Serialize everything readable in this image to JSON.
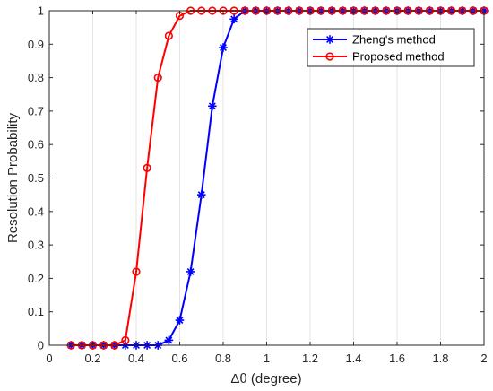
{
  "chart_data": {
    "type": "line",
    "xlabel": "Δθ (degree)",
    "ylabel": "Resolution Probability",
    "xlim": [
      0,
      2
    ],
    "ylim": [
      0,
      1
    ],
    "xticks": [
      "0",
      "0.2",
      "0.4",
      "0.6",
      "0.8",
      "1",
      "1.2",
      "1.4",
      "1.6",
      "1.8",
      "2"
    ],
    "yticks": [
      "0",
      "0.1",
      "0.2",
      "0.3",
      "0.4",
      "0.5",
      "0.6",
      "0.7",
      "0.8",
      "0.9",
      "1"
    ],
    "grid": "vertical",
    "legend_position": "top-right",
    "x": [
      0.1,
      0.15,
      0.2,
      0.25,
      0.3,
      0.35,
      0.4,
      0.45,
      0.5,
      0.55,
      0.6,
      0.65,
      0.7,
      0.75,
      0.8,
      0.85,
      0.9,
      0.95,
      1.0,
      1.05,
      1.1,
      1.15,
      1.2,
      1.25,
      1.3,
      1.35,
      1.4,
      1.45,
      1.5,
      1.55,
      1.6,
      1.65,
      1.7,
      1.75,
      1.8,
      1.85,
      1.9,
      1.95,
      2.0
    ],
    "series": [
      {
        "name": "Zheng's method",
        "color": "#0000ff",
        "marker": "asterisk",
        "values": [
          0,
          0,
          0,
          0,
          0,
          0,
          0,
          0,
          0,
          0.015,
          0.075,
          0.22,
          0.45,
          0.715,
          0.89,
          0.975,
          1,
          1,
          1,
          1,
          1,
          1,
          1,
          1,
          1,
          1,
          1,
          1,
          1,
          1,
          1,
          1,
          1,
          1,
          1,
          1,
          1,
          1,
          1
        ]
      },
      {
        "name": "Proposed method",
        "color": "#ff0000",
        "marker": "circle",
        "values": [
          0,
          0,
          0,
          0,
          0,
          0.015,
          0.22,
          0.53,
          0.8,
          0.925,
          0.985,
          1,
          1,
          1,
          1,
          1,
          1,
          1,
          1,
          1,
          1,
          1,
          1,
          1,
          1,
          1,
          1,
          1,
          1,
          1,
          1,
          1,
          1,
          1,
          1,
          1,
          1,
          1,
          1
        ]
      }
    ]
  }
}
